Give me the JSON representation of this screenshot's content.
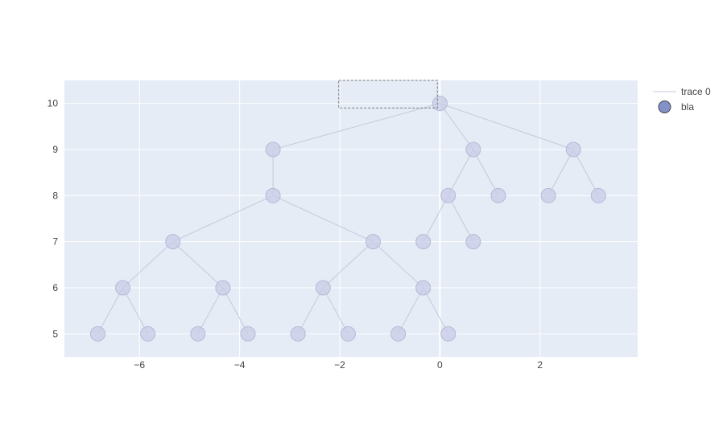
{
  "chart_data": {
    "type": "scatter",
    "xlim": [
      -7.5,
      3.95
    ],
    "ylim": [
      4.5,
      10.5
    ],
    "x_ticks": [
      -6,
      -4,
      -2,
      0,
      2
    ],
    "x_tick_labels": [
      "−6",
      "−4",
      "−2",
      "0",
      "2"
    ],
    "y_ticks": [
      5,
      6,
      7,
      8,
      9,
      10
    ],
    "y_tick_labels": [
      "5",
      "6",
      "7",
      "8",
      "9",
      "10"
    ],
    "grid": true,
    "legend_position": "top-right",
    "colors": {
      "plot_bg": "#e5ecf6",
      "grid": "#ffffff",
      "edge": "#c8c8d8",
      "marker_fill": "#c8cce6",
      "marker_stroke": "#b4bad6",
      "legend_marker": "#8491c8",
      "legend_marker_stroke": "#444444",
      "selection_box": "#7a7a7a"
    },
    "series": [
      {
        "name": "trace 0",
        "kind": "lines",
        "segments": [
          [
            [
              0,
              10
            ],
            [
              -3.333,
              9
            ]
          ],
          [
            [
              0,
              10
            ],
            [
              0.667,
              9
            ]
          ],
          [
            [
              0,
              10
            ],
            [
              2.667,
              9
            ]
          ],
          [
            [
              -3.333,
              9
            ],
            [
              -3.333,
              8
            ]
          ],
          [
            [
              0.667,
              9
            ],
            [
              0.167,
              8
            ]
          ],
          [
            [
              0.667,
              9
            ],
            [
              1.167,
              8
            ]
          ],
          [
            [
              2.667,
              9
            ],
            [
              2.167,
              8
            ]
          ],
          [
            [
              2.667,
              9
            ],
            [
              3.167,
              8
            ]
          ],
          [
            [
              -3.333,
              8
            ],
            [
              -5.333,
              7
            ]
          ],
          [
            [
              -3.333,
              8
            ],
            [
              -1.333,
              7
            ]
          ],
          [
            [
              0.167,
              8
            ],
            [
              -0.333,
              7
            ]
          ],
          [
            [
              0.167,
              8
            ],
            [
              0.667,
              7
            ]
          ],
          [
            [
              -5.333,
              7
            ],
            [
              -6.333,
              6
            ]
          ],
          [
            [
              -5.333,
              7
            ],
            [
              -4.333,
              6
            ]
          ],
          [
            [
              -1.333,
              7
            ],
            [
              -2.333,
              6
            ]
          ],
          [
            [
              -1.333,
              7
            ],
            [
              -0.333,
              6
            ]
          ],
          [
            [
              -6.333,
              6
            ],
            [
              -6.833,
              5
            ]
          ],
          [
            [
              -6.333,
              6
            ],
            [
              -5.833,
              5
            ]
          ],
          [
            [
              -4.333,
              6
            ],
            [
              -4.833,
              5
            ]
          ],
          [
            [
              -4.333,
              6
            ],
            [
              -3.833,
              5
            ]
          ],
          [
            [
              -2.333,
              6
            ],
            [
              -2.833,
              5
            ]
          ],
          [
            [
              -2.333,
              6
            ],
            [
              -1.833,
              5
            ]
          ],
          [
            [
              -0.333,
              6
            ],
            [
              -0.833,
              5
            ]
          ],
          [
            [
              -0.333,
              6
            ],
            [
              0.167,
              5
            ]
          ]
        ]
      },
      {
        "name": "bla",
        "kind": "markers",
        "points": [
          [
            0,
            10
          ],
          [
            -3.333,
            9
          ],
          [
            0.667,
            9
          ],
          [
            2.667,
            9
          ],
          [
            -3.333,
            8
          ],
          [
            0.167,
            8
          ],
          [
            1.167,
            8
          ],
          [
            2.167,
            8
          ],
          [
            3.167,
            8
          ],
          [
            -5.333,
            7
          ],
          [
            -1.333,
            7
          ],
          [
            -0.333,
            7
          ],
          [
            0.667,
            7
          ],
          [
            -6.333,
            6
          ],
          [
            -4.333,
            6
          ],
          [
            -2.333,
            6
          ],
          [
            -0.333,
            6
          ],
          [
            -6.833,
            5
          ],
          [
            -5.833,
            5
          ],
          [
            -4.833,
            5
          ],
          [
            -3.833,
            5
          ],
          [
            -2.833,
            5
          ],
          [
            -1.833,
            5
          ],
          [
            -0.833,
            5
          ],
          [
            0.167,
            5
          ]
        ]
      }
    ],
    "selection_box": {
      "x": [
        -2.02,
        -0.05
      ],
      "y": [
        9.9,
        10.5
      ]
    }
  }
}
